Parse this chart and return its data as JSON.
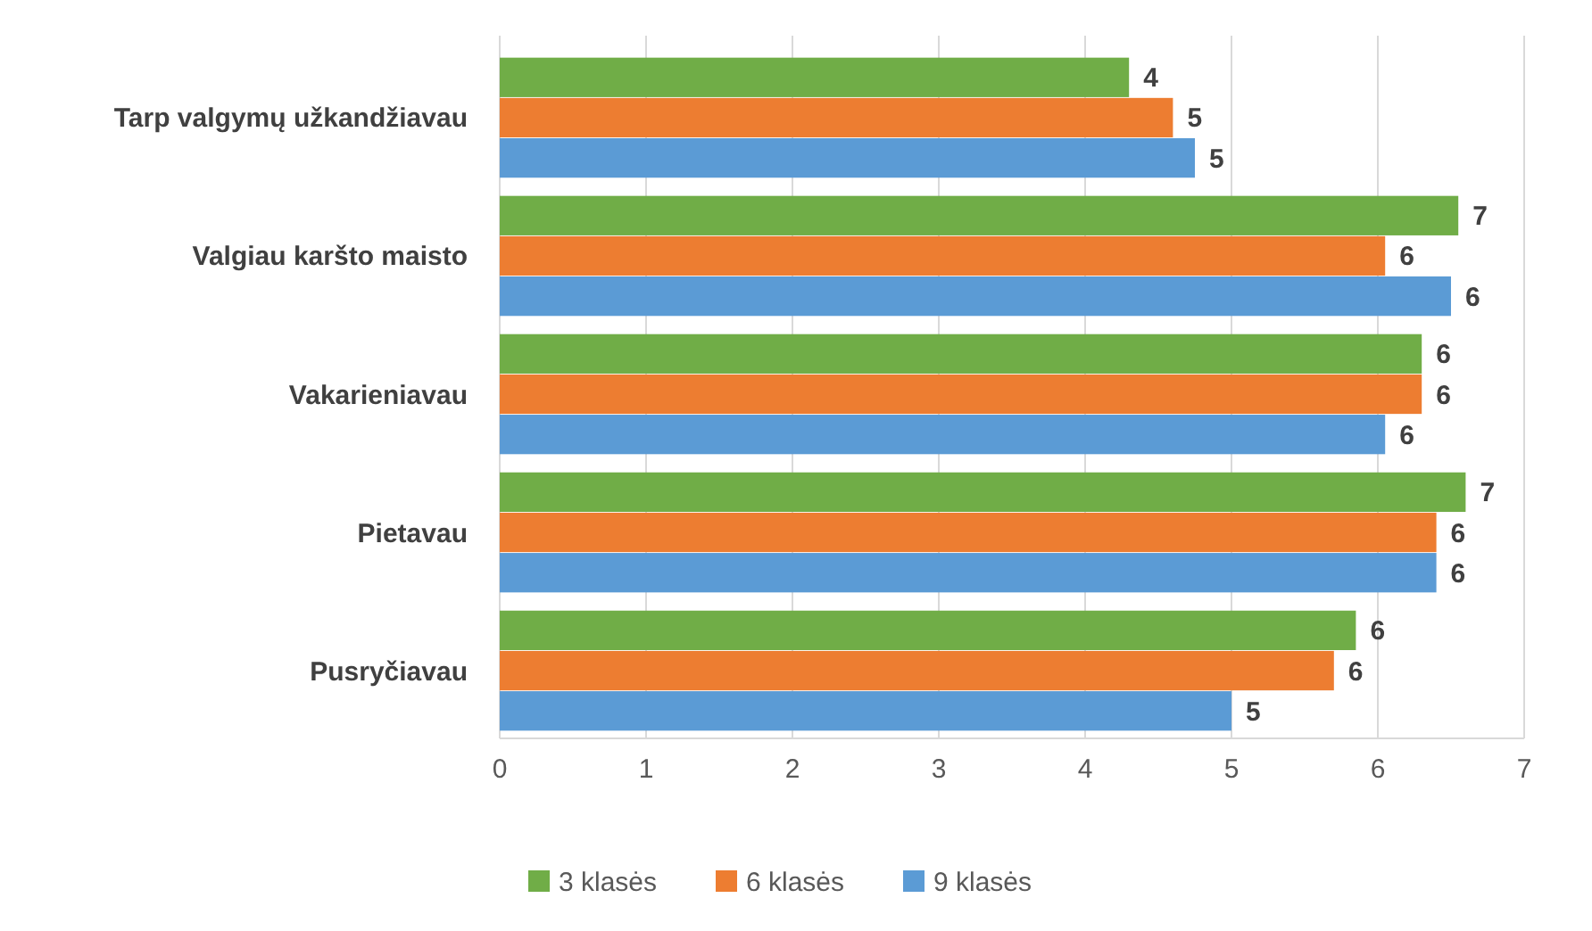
{
  "chart_data": {
    "type": "bar",
    "orientation": "horizontal",
    "categories": [
      "Tarp valgymų užkandžiavau",
      "Valgiau karšto maisto",
      "Vakarieniavau",
      "Pietavau",
      "Pusryčiavau"
    ],
    "series": [
      {
        "name": "3 klasės",
        "color": "#70ad47",
        "values": [
          4.3,
          6.55,
          6.3,
          6.6,
          5.85
        ],
        "value_labels": [
          "4",
          "7",
          "6",
          "7",
          "6"
        ]
      },
      {
        "name": "6 klasės",
        "color": "#ed7d31",
        "values": [
          4.6,
          6.05,
          6.3,
          6.4,
          5.7
        ],
        "value_labels": [
          "5",
          "6",
          "6",
          "6",
          "6"
        ]
      },
      {
        "name": "9 klasės",
        "color": "#5b9bd5",
        "values": [
          4.75,
          6.5,
          6.05,
          6.4,
          5.0
        ],
        "value_labels": [
          "5",
          "6",
          "6",
          "6",
          "5"
        ]
      }
    ],
    "xlim": [
      0,
      7
    ],
    "xticks": [
      0,
      1,
      2,
      3,
      4,
      5,
      6,
      7
    ],
    "grid": "x",
    "legend": "bottom"
  }
}
